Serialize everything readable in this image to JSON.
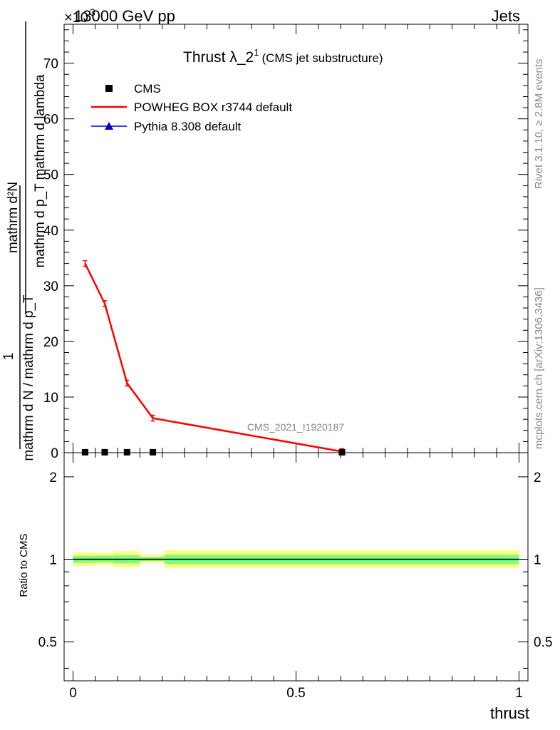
{
  "header": {
    "energy": "13000 GeV pp",
    "exponent": "×10",
    "exponent_power": "3",
    "process": "Jets"
  },
  "side": {
    "rivet": "Rivet 3.1.10, ≥ 2.8M events",
    "mcplots": "mcplots.cern.ch [arXiv:1306.3436]"
  },
  "labels": {
    "title_main": "Thrust λ_2",
    "title_sup": "1",
    "title_sub": "(CMS jet substructure)",
    "watermark": "CMS_2021_I1920187",
    "xlabel": "thrust",
    "ylabel_ratio": "Ratio to CMS",
    "ylabel_top_numerator": "1",
    "ylabel_top_denominator": "mathrm d N / mathrm d p_T",
    "ylabel_top_numer_frac": "mathrm d²N",
    "ylabel_top_denom_frac": "mathrm d p_T mathrm d lambda"
  },
  "colors": {
    "powheg": "#ff0000",
    "pythia": "#0000cc",
    "cms": "#000000",
    "band_inner": "#7fff7f",
    "band_outer": "#ffff7f"
  },
  "chart_data": [
    {
      "type": "line",
      "panel": "main",
      "xlim": [
        -0.02,
        1.02
      ],
      "ylim": [
        0,
        77
      ],
      "y_multiplier": "×10^3",
      "x_ticks": [
        0,
        0.5,
        1
      ],
      "y_ticks": [
        0,
        10,
        20,
        30,
        40,
        50,
        60,
        70
      ],
      "legend": [
        {
          "name": "CMS",
          "marker": "square"
        },
        {
          "name": "POWHEG BOX r3744 default",
          "marker": "line"
        },
        {
          "name": "Pythia 8.308 default",
          "marker": "triangle"
        }
      ],
      "series": [
        {
          "name": "CMS",
          "x": [
            0.027,
            0.071,
            0.121,
            0.179,
            0.603
          ],
          "y": [
            0.08,
            0.08,
            0.08,
            0.08,
            0.08
          ]
        },
        {
          "name": "POWHEG BOX r3744 default",
          "x": [
            0.027,
            0.071,
            0.121,
            0.179,
            0.603
          ],
          "y": [
            34.0,
            26.8,
            12.5,
            6.2,
            0.2
          ]
        },
        {
          "name": "Pythia 8.308 default",
          "x": [],
          "y": []
        }
      ]
    },
    {
      "type": "area",
      "panel": "ratio",
      "xlim": [
        -0.02,
        1.02
      ],
      "ylim": [
        0.36,
        2.45
      ],
      "y_scale": "log",
      "y_ticks": [
        0.5,
        1,
        2
      ],
      "reference": 1,
      "bins": [
        {
          "x0": 0.0,
          "x1": 0.05,
          "inner": [
            0.97,
            1.03
          ],
          "outer": [
            0.945,
            1.06
          ]
        },
        {
          "x0": 0.05,
          "x1": 0.09,
          "inner": [
            0.975,
            1.03
          ],
          "outer": [
            0.955,
            1.055
          ]
        },
        {
          "x0": 0.09,
          "x1": 0.15,
          "inner": [
            0.965,
            1.035
          ],
          "outer": [
            0.935,
            1.07
          ]
        },
        {
          "x0": 0.15,
          "x1": 0.205,
          "inner": [
            0.985,
            1.02
          ],
          "outer": [
            0.97,
            1.04
          ]
        },
        {
          "x0": 0.205,
          "x1": 1.0,
          "inner": [
            0.96,
            1.04
          ],
          "outer": [
            0.93,
            1.08
          ]
        }
      ]
    }
  ]
}
